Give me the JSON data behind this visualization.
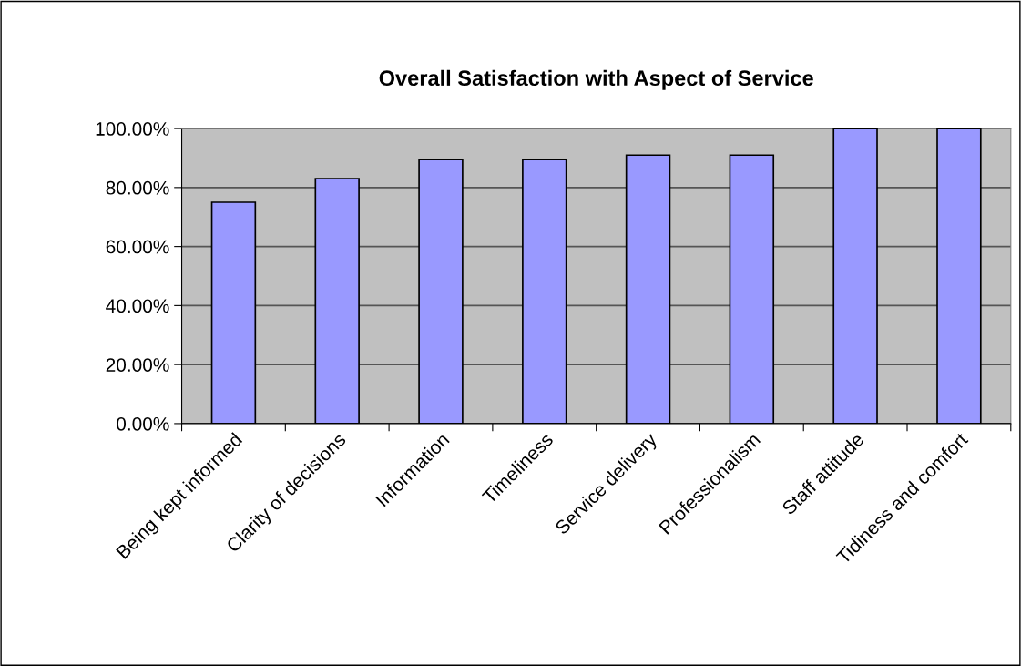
{
  "chart_data": {
    "type": "bar",
    "title": "Overall Satisfaction with Aspect of Service",
    "categories": [
      "Being kept informed",
      "Clarity of decisions",
      "Information",
      "Timeliness",
      "Service delivery",
      "Professionalism",
      "Staff attitude",
      "Tidiness and comfort"
    ],
    "values": [
      75,
      83,
      89.5,
      89.5,
      91,
      91,
      100,
      100
    ],
    "color": "#9999ff",
    "ylim": [
      0,
      100
    ],
    "yticks": [
      {
        "value": 0,
        "label": "0.00%"
      },
      {
        "value": 20,
        "label": "20.00%"
      },
      {
        "value": 40,
        "label": "40.00%"
      },
      {
        "value": 60,
        "label": "60.00%"
      },
      {
        "value": 80,
        "label": "80.00%"
      },
      {
        "value": 100,
        "label": "100.00%"
      }
    ],
    "grid": "y",
    "legend": false
  }
}
